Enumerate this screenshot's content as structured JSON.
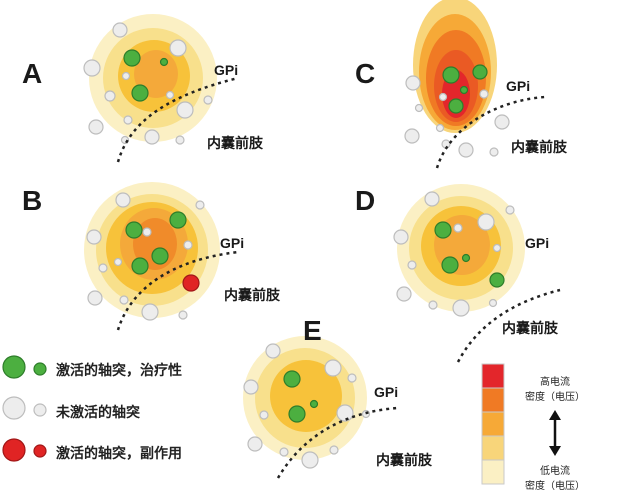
{
  "panels": {
    "A": {
      "letter": "A",
      "gpi": "GPi",
      "capsule": "内囊前肢"
    },
    "B": {
      "letter": "B",
      "gpi": "GPi",
      "capsule": "内囊前肢"
    },
    "C": {
      "letter": "C",
      "gpi": "GPi",
      "capsule": "内囊前肢"
    },
    "D": {
      "letter": "D",
      "gpi": "GPi",
      "capsule": "内囊前肢"
    },
    "E": {
      "letter": "E",
      "gpi": "GPi",
      "capsule": "内囊前肢"
    }
  },
  "legend": {
    "items": [
      {
        "label": "激活的轴突，治疗性",
        "color": "#4caf40"
      },
      {
        "label": "未激活的轴突",
        "color": "#e8e8e8"
      },
      {
        "label": "激活的轴突，副作用",
        "color": "#e02424"
      }
    ]
  },
  "scale": {
    "high_line1": "高电流",
    "high_line2": "密度（电压）",
    "low_line1": "低电流",
    "low_line2": "密度（电压）",
    "colors": [
      "#e3262b",
      "#f07a24",
      "#f6a937",
      "#f8d57a",
      "#fbf0c4"
    ]
  }
}
